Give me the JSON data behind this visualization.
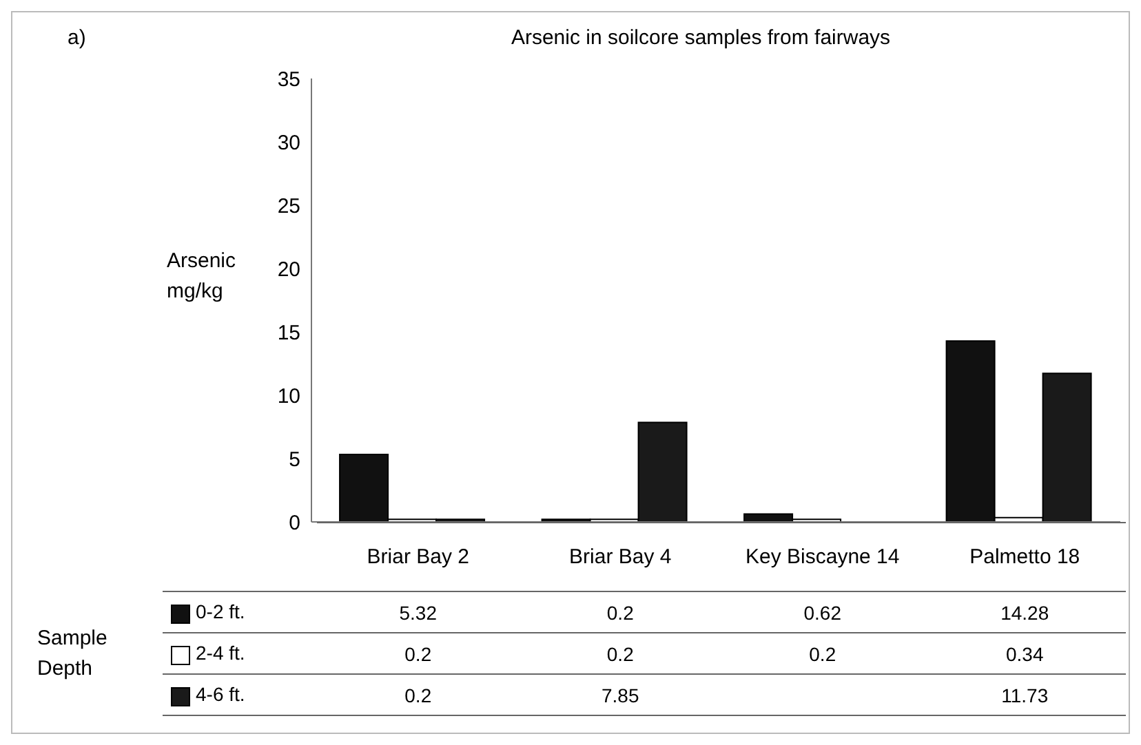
{
  "chart_data": {
    "type": "bar",
    "title": "Arsenic in soilcore samples from fairways",
    "annotations": [
      "a)"
    ],
    "ylabel": "Arsenic mg/kg",
    "legend_title": "Sample Depth",
    "categories": [
      "Briar Bay 2",
      "Briar Bay 4",
      "Key Biscayne 14",
      "Palmetto 18"
    ],
    "series": [
      {
        "name": "0-2 ft.",
        "color": "#111111",
        "values": [
          5.32,
          0.2,
          0.62,
          14.28
        ]
      },
      {
        "name": "2-4 ft.",
        "color": "#ffffff",
        "values": [
          0.2,
          0.2,
          0.2,
          0.34
        ]
      },
      {
        "name": "4-6 ft.",
        "color": "#1a1a1a",
        "values": [
          0.2,
          7.85,
          null,
          11.73
        ]
      }
    ],
    "ylim": [
      0,
      35
    ],
    "yticks": [
      0,
      5,
      10,
      15,
      20,
      25,
      30,
      35
    ],
    "grid": false,
    "legend": "bottom left",
    "data_labels": true
  }
}
